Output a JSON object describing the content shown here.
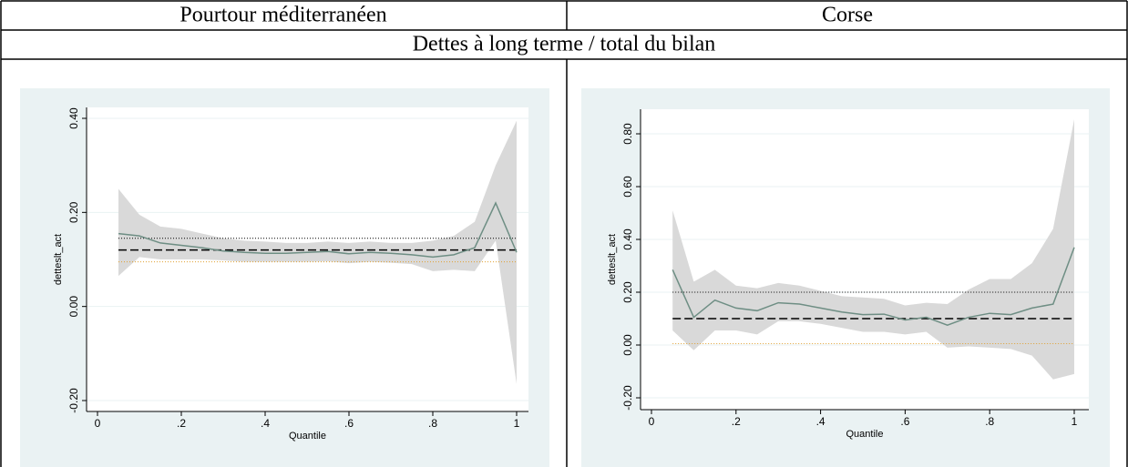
{
  "table": {
    "headers": [
      "Pourtour méditerranéen",
      "Corse"
    ],
    "subtitle": "Dettes à long terme / total du bilan"
  },
  "chart_data": [
    {
      "type": "line",
      "xlabel": "Quantile",
      "ylabel": "detteslt_act",
      "x": [
        0.05,
        0.1,
        0.15,
        0.2,
        0.25,
        0.3,
        0.35,
        0.4,
        0.45,
        0.5,
        0.55,
        0.6,
        0.65,
        0.7,
        0.75,
        0.8,
        0.85,
        0.9,
        0.95,
        1
      ],
      "series": [
        {
          "color": "#6e8e84",
          "values": [
            0.155,
            0.15,
            0.135,
            0.13,
            0.125,
            0.118,
            0.115,
            0.113,
            0.113,
            0.115,
            0.117,
            0.112,
            0.115,
            0.113,
            0.11,
            0.105,
            0.11,
            0.125,
            0.22,
            0.115
          ]
        }
      ],
      "band": {
        "color": "#d9d9d9",
        "upper": [
          0.25,
          0.195,
          0.17,
          0.165,
          0.155,
          0.145,
          0.14,
          0.138,
          0.135,
          0.135,
          0.138,
          0.135,
          0.138,
          0.135,
          0.135,
          0.14,
          0.15,
          0.18,
          0.3,
          0.395
        ],
        "lower": [
          0.065,
          0.105,
          0.1,
          0.1,
          0.1,
          0.098,
          0.095,
          0.095,
          0.095,
          0.095,
          0.096,
          0.092,
          0.095,
          0.093,
          0.09,
          0.075,
          0.078,
          0.075,
          0.14,
          -0.165
        ]
      },
      "hlines": [
        {
          "value": 0.145,
          "style": "dotted",
          "color": "#000000"
        },
        {
          "value": 0.12,
          "style": "dashed",
          "color": "#000000"
        },
        {
          "value": 0.095,
          "style": "dotted",
          "color": "#e0a030"
        }
      ],
      "xlim": [
        0,
        1
      ],
      "xticks": [
        0,
        {
          "value": 0.2,
          "label": ".2"
        },
        {
          "value": 0.4,
          "label": ".4"
        },
        {
          "value": 0.6,
          "label": ".6"
        },
        {
          "value": 0.8,
          "label": ".8"
        },
        1
      ],
      "ylim": [
        -0.2,
        0.4
      ],
      "yticks": [
        {
          "value": -0.2,
          "label": "-0.20"
        },
        {
          "value": 0,
          "label": "0.00"
        },
        {
          "value": 0.2,
          "label": "0.20"
        },
        {
          "value": 0.4,
          "label": "0.40"
        }
      ],
      "grid": true
    },
    {
      "type": "line",
      "xlabel": "Quantile",
      "ylabel": "detteslt_act",
      "x": [
        0.05,
        0.1,
        0.15,
        0.2,
        0.25,
        0.3,
        0.35,
        0.4,
        0.45,
        0.5,
        0.55,
        0.6,
        0.65,
        0.7,
        0.75,
        0.8,
        0.85,
        0.9,
        0.95,
        1
      ],
      "series": [
        {
          "color": "#6e8e84",
          "values": [
            0.285,
            0.105,
            0.17,
            0.14,
            0.13,
            0.16,
            0.155,
            0.14,
            0.125,
            0.115,
            0.117,
            0.095,
            0.105,
            0.075,
            0.105,
            0.12,
            0.115,
            0.14,
            0.155,
            0.37
          ]
        }
      ],
      "band": {
        "color": "#d9d9d9",
        "upper": [
          0.51,
          0.24,
          0.285,
          0.225,
          0.215,
          0.235,
          0.225,
          0.205,
          0.185,
          0.18,
          0.175,
          0.15,
          0.16,
          0.155,
          0.21,
          0.25,
          0.25,
          0.31,
          0.44,
          0.855
        ],
        "lower": [
          0.055,
          -0.02,
          0.055,
          0.055,
          0.04,
          0.09,
          0.09,
          0.08,
          0.065,
          0.05,
          0.05,
          0.04,
          0.05,
          -0.01,
          -0.005,
          -0.01,
          -0.015,
          -0.04,
          -0.13,
          -0.11
        ]
      },
      "hlines": [
        {
          "value": 0.2,
          "style": "dotted",
          "color": "#000000"
        },
        {
          "value": 0.1,
          "style": "dashed",
          "color": "#000000"
        },
        {
          "value": 0.005,
          "style": "dotted",
          "color": "#e0a030"
        }
      ],
      "xlim": [
        0,
        1
      ],
      "xticks": [
        0,
        {
          "value": 0.2,
          "label": ".2"
        },
        {
          "value": 0.4,
          "label": ".4"
        },
        {
          "value": 0.6,
          "label": ".6"
        },
        {
          "value": 0.8,
          "label": ".8"
        },
        1
      ],
      "ylim": [
        -0.2,
        0.8
      ],
      "yticks": [
        {
          "value": -0.2,
          "label": "-0.20"
        },
        {
          "value": 0,
          "label": "0.00"
        },
        {
          "value": 0.2,
          "label": "0.20"
        },
        {
          "value": 0.4,
          "label": "0.40"
        },
        {
          "value": 0.6,
          "label": "0.60"
        },
        {
          "value": 0.8,
          "label": "0.80"
        }
      ],
      "grid": true
    }
  ]
}
